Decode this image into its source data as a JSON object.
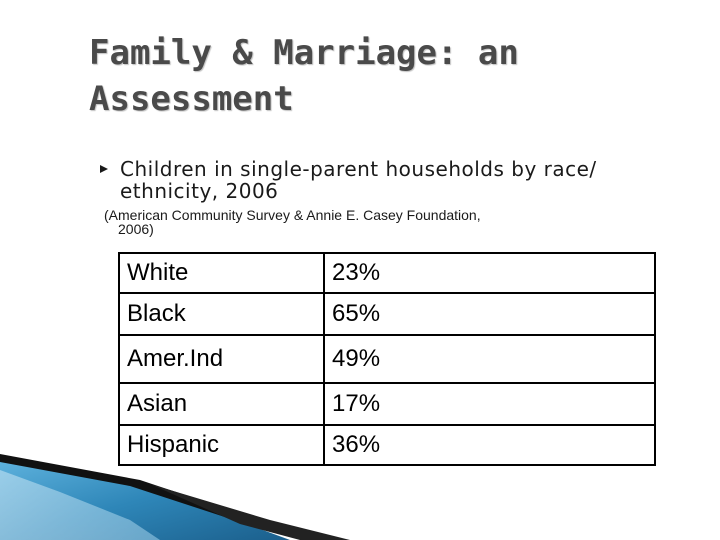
{
  "slide": {
    "title": "Family & Marriage: an Assessment",
    "bullet": {
      "icon": "bullet-arrow-icon",
      "text": "Children in single-parent households by race/ ethnicity, 2006"
    },
    "source": {
      "line1": "(American Community Survey & Annie E. Casey Foundation,",
      "line2": "2006)"
    },
    "table": {
      "rows": [
        {
          "group": "White",
          "value": "23%"
        },
        {
          "group": "Black",
          "value": "65%"
        },
        {
          "group": "Amer.Ind",
          "value": "49%"
        },
        {
          "group": "Asian",
          "value": "17%"
        },
        {
          "group": "Hispanic",
          "value": "36%"
        }
      ]
    },
    "colors": {
      "title": "#4a4a4a",
      "accent_blue": "#2e86b8",
      "accent_dark": "#111111"
    }
  }
}
